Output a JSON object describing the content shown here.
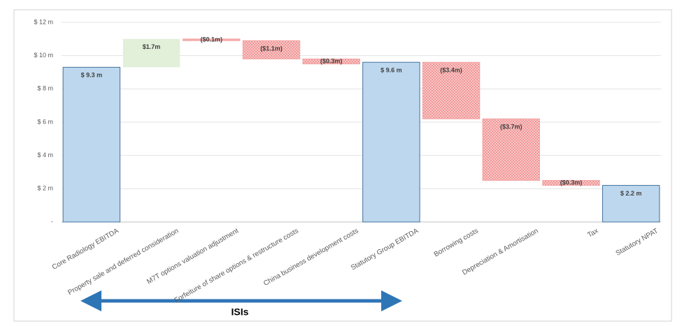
{
  "chart_data": {
    "type": "waterfall",
    "categories": [
      "Core Radiology EBITDA",
      "Property sale and deferred consideration",
      "M7T options valuation adjustment",
      "Forfeiture of share options & restructure costs",
      "China business development costs",
      "Statutory Group EBITDA",
      "Borrowing costs",
      "Depreciation & Amortisation",
      "Tax",
      "Statutory NPAT"
    ],
    "values": [
      9.3,
      1.7,
      -0.1,
      -1.1,
      -0.3,
      9.6,
      -3.4,
      -3.7,
      -0.3,
      2.2
    ],
    "value_labels": [
      "$ 9.3 m",
      "$1.7m",
      "($0.1m)",
      "($1.1m)",
      "($0.3m)",
      "$ 9.6 m",
      "($3.4m)",
      "($3.7m)",
      "($0.3m)",
      "$ 2.2 m"
    ],
    "measure": [
      "absolute",
      "relative",
      "relative",
      "relative",
      "relative",
      "absolute",
      "relative",
      "relative",
      "relative",
      "absolute"
    ],
    "colors": {
      "total": "#bdd7ee",
      "increase": "#e2efd9",
      "decrease": "#f4a6a6"
    },
    "ylim": [
      0,
      12
    ],
    "yticks": [
      {
        "value": 0,
        "label": "-"
      },
      {
        "value": 2,
        "label": "$ 2 m"
      },
      {
        "value": 4,
        "label": "$ 4 m"
      },
      {
        "value": 6,
        "label": "$ 6 m"
      },
      {
        "value": 8,
        "label": "$ 8 m"
      },
      {
        "value": 10,
        "label": "$ 10 m"
      },
      {
        "value": 12,
        "label": "$ 12 m"
      }
    ],
    "grid": true,
    "annotation": "ISIs"
  }
}
